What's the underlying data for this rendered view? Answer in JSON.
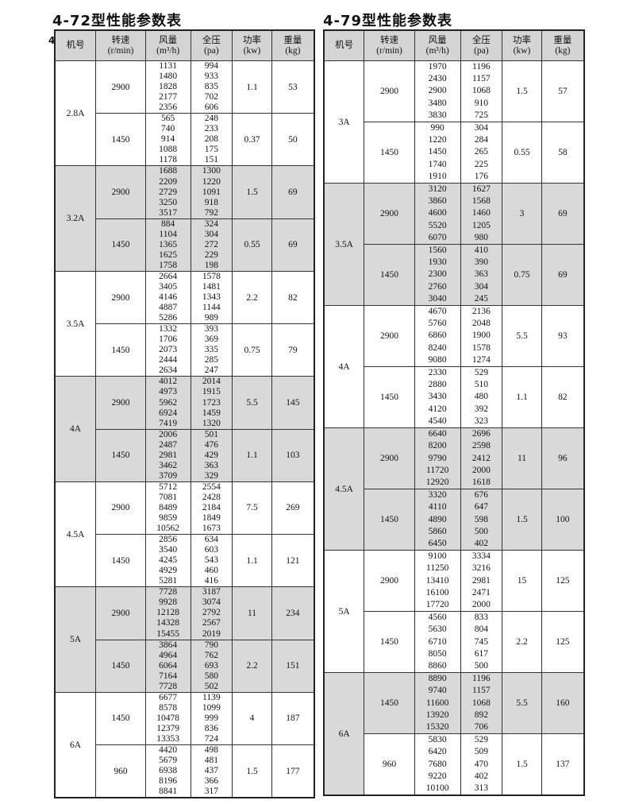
{
  "stray_char": "4",
  "tables": [
    {
      "title": "4-72型性能参数表",
      "headers": [
        "机号",
        "转速\n(r/min)",
        "风量\n(m³/h)",
        "全压\n(pa)",
        "功率\n(kw)",
        "重量\n(kg)"
      ],
      "models": [
        {
          "model": "2.8A",
          "shaded": false,
          "groups": [
            {
              "speed": "2900",
              "flow": [
                "1131",
                "1480",
                "1828",
                "2177",
                "2356"
              ],
              "pressure": [
                "994",
                "933",
                "835",
                "702",
                "606"
              ],
              "power": "1.1",
              "weight": "53",
              "shaded": false
            },
            {
              "speed": "1450",
              "flow": [
                "565",
                "740",
                "914",
                "1088",
                "1178"
              ],
              "pressure": [
                "248",
                "233",
                "208",
                "175",
                "151"
              ],
              "power": "0.37",
              "weight": "50",
              "shaded": false
            }
          ]
        },
        {
          "model": "3.2A",
          "shaded": true,
          "groups": [
            {
              "speed": "2900",
              "flow": [
                "1688",
                "2209",
                "2729",
                "3250",
                "3517"
              ],
              "pressure": [
                "1300",
                "1220",
                "1091",
                "918",
                "792"
              ],
              "power": "1.5",
              "weight": "69",
              "shaded": true
            },
            {
              "speed": "1450",
              "flow": [
                "884",
                "1104",
                "1365",
                "1625",
                "1758"
              ],
              "pressure": [
                "324",
                "304",
                "272",
                "229",
                "198"
              ],
              "power": "0.55",
              "weight": "69",
              "shaded": true
            }
          ]
        },
        {
          "model": "3.5A",
          "shaded": false,
          "groups": [
            {
              "speed": "2900",
              "flow": [
                "2664",
                "3405",
                "4146",
                "4887",
                "5286"
              ],
              "pressure": [
                "1578",
                "1481",
                "1343",
                "1144",
                "989"
              ],
              "power": "2.2",
              "weight": "82",
              "shaded": false
            },
            {
              "speed": "1450",
              "flow": [
                "1332",
                "1706",
                "2073",
                "2444",
                "2634"
              ],
              "pressure": [
                "393",
                "369",
                "335",
                "285",
                "247"
              ],
              "power": "0.75",
              "weight": "79",
              "shaded": false
            }
          ]
        },
        {
          "model": "4A",
          "shaded": true,
          "groups": [
            {
              "speed": "2900",
              "flow": [
                "4012",
                "4973",
                "5962",
                "6924",
                "7419"
              ],
              "pressure": [
                "2014",
                "1915",
                "1723",
                "1459",
                "1320"
              ],
              "power": "5.5",
              "weight": "145",
              "shaded": true
            },
            {
              "speed": "1450",
              "flow": [
                "2006",
                "2487",
                "2981",
                "3462",
                "3709"
              ],
              "pressure": [
                "501",
                "476",
                "429",
                "363",
                "329"
              ],
              "power": "1.1",
              "weight": "103",
              "shaded": true
            }
          ]
        },
        {
          "model": "4.5A",
          "shaded": false,
          "groups": [
            {
              "speed": "2900",
              "flow": [
                "5712",
                "7081",
                "8489",
                "9859",
                "10562"
              ],
              "pressure": [
                "2554",
                "2428",
                "2184",
                "1849",
                "1673"
              ],
              "power": "7.5",
              "weight": "269",
              "shaded": false
            },
            {
              "speed": "1450",
              "flow": [
                "2856",
                "3540",
                "4245",
                "4929",
                "5281"
              ],
              "pressure": [
                "634",
                "603",
                "543",
                "460",
                "416"
              ],
              "power": "1.1",
              "weight": "121",
              "shaded": false
            }
          ]
        },
        {
          "model": "5A",
          "shaded": true,
          "groups": [
            {
              "speed": "2900",
              "flow": [
                "7728",
                "9928",
                "12128",
                "14328",
                "15455"
              ],
              "pressure": [
                "3187",
                "3074",
                "2792",
                "2567",
                "2019"
              ],
              "power": "11",
              "weight": "234",
              "shaded": true
            },
            {
              "speed": "1450",
              "flow": [
                "3864",
                "4964",
                "6064",
                "7164",
                "7728"
              ],
              "pressure": [
                "790",
                "762",
                "693",
                "580",
                "502"
              ],
              "power": "2.2",
              "weight": "151",
              "shaded": true
            }
          ]
        },
        {
          "model": "6A",
          "shaded": false,
          "groups": [
            {
              "speed": "1450",
              "flow": [
                "6677",
                "8578",
                "10478",
                "12379",
                "13353"
              ],
              "pressure": [
                "1139",
                "1099",
                "999",
                "836",
                "724"
              ],
              "power": "4",
              "weight": "187",
              "shaded": false
            },
            {
              "speed": "960",
              "flow": [
                "4420",
                "5679",
                "6938",
                "8196",
                "8841"
              ],
              "pressure": [
                "498",
                "481",
                "437",
                "366",
                "317"
              ],
              "power": "1.5",
              "weight": "177",
              "shaded": false
            }
          ]
        }
      ]
    },
    {
      "title": "4-79型性能参数表",
      "headers": [
        "机号",
        "转速\n(r/min)",
        "风量\n(m³/h)",
        "全压\n(pa)",
        "功率\n(kw)",
        "重量\n(kg)"
      ],
      "models": [
        {
          "model": "3A",
          "shaded": false,
          "groups": [
            {
              "speed": "2900",
              "flow": [
                "1970",
                "2430",
                "2900",
                "3480",
                "3830"
              ],
              "pressure": [
                "1196",
                "1157",
                "1068",
                "910",
                "725"
              ],
              "power": "1.5",
              "weight": "57",
              "shaded": false
            },
            {
              "speed": "1450",
              "flow": [
                "990",
                "1220",
                "1450",
                "1740",
                "1910"
              ],
              "pressure": [
                "304",
                "284",
                "265",
                "225",
                "176"
              ],
              "power": "0.55",
              "weight": "58",
              "shaded": false
            }
          ]
        },
        {
          "model": "3.5A",
          "shaded": true,
          "groups": [
            {
              "speed": "2900",
              "flow": [
                "3120",
                "3860",
                "4600",
                "5520",
                "6070"
              ],
              "pressure": [
                "1627",
                "1568",
                "1460",
                "1205",
                "980"
              ],
              "power": "3",
              "weight": "69",
              "shaded": true
            },
            {
              "speed": "1450",
              "flow": [
                "1560",
                "1930",
                "2300",
                "2760",
                "3040"
              ],
              "pressure": [
                "410",
                "390",
                "363",
                "304",
                "245"
              ],
              "power": "0.75",
              "weight": "69",
              "shaded": true
            }
          ]
        },
        {
          "model": "4A",
          "shaded": false,
          "groups": [
            {
              "speed": "2900",
              "flow": [
                "4670",
                "5760",
                "6860",
                "8240",
                "9080"
              ],
              "pressure": [
                "2136",
                "2048",
                "1900",
                "1578",
                "1274"
              ],
              "power": "5.5",
              "weight": "93",
              "shaded": false
            },
            {
              "speed": "1450",
              "flow": [
                "2330",
                "2880",
                "3430",
                "4120",
                "4540"
              ],
              "pressure": [
                "529",
                "510",
                "480",
                "392",
                "323"
              ],
              "power": "1.1",
              "weight": "82",
              "shaded": false
            }
          ]
        },
        {
          "model": "4.5A",
          "shaded": true,
          "groups": [
            {
              "speed": "2900",
              "flow": [
                "6640",
                "8200",
                "9790",
                "11720",
                "12920"
              ],
              "pressure": [
                "2696",
                "2598",
                "2412",
                "2000",
                "1618"
              ],
              "power": "11",
              "weight": "96",
              "shaded": true
            },
            {
              "speed": "1450",
              "flow": [
                "3320",
                "4110",
                "4890",
                "5860",
                "6450"
              ],
              "pressure": [
                "676",
                "647",
                "598",
                "500",
                "402"
              ],
              "power": "1.5",
              "weight": "100",
              "shaded": true
            }
          ]
        },
        {
          "model": "5A",
          "shaded": false,
          "groups": [
            {
              "speed": "2900",
              "flow": [
                "9100",
                "11250",
                "13410",
                "16100",
                "17720"
              ],
              "pressure": [
                "3334",
                "3216",
                "2981",
                "2471",
                "2000"
              ],
              "power": "15",
              "weight": "125",
              "shaded": false
            },
            {
              "speed": "1450",
              "flow": [
                "4560",
                "5630",
                "6710",
                "8050",
                "8860"
              ],
              "pressure": [
                "833",
                "804",
                "745",
                "617",
                "500"
              ],
              "power": "2.2",
              "weight": "125",
              "shaded": false
            }
          ]
        },
        {
          "model": "6A",
          "shaded": true,
          "groups": [
            {
              "speed": "1450",
              "flow": [
                "8890",
                "9740",
                "11600",
                "13920",
                "15320"
              ],
              "pressure": [
                "1196",
                "1157",
                "1068",
                "892",
                "706"
              ],
              "power": "5.5",
              "weight": "160",
              "shaded": true
            },
            {
              "speed": "960",
              "flow": [
                "5830",
                "6420",
                "7680",
                "9220",
                "10100"
              ],
              "pressure": [
                "529",
                "509",
                "470",
                "402",
                "313"
              ],
              "power": "1.5",
              "weight": "137",
              "shaded": false
            }
          ]
        }
      ]
    }
  ]
}
